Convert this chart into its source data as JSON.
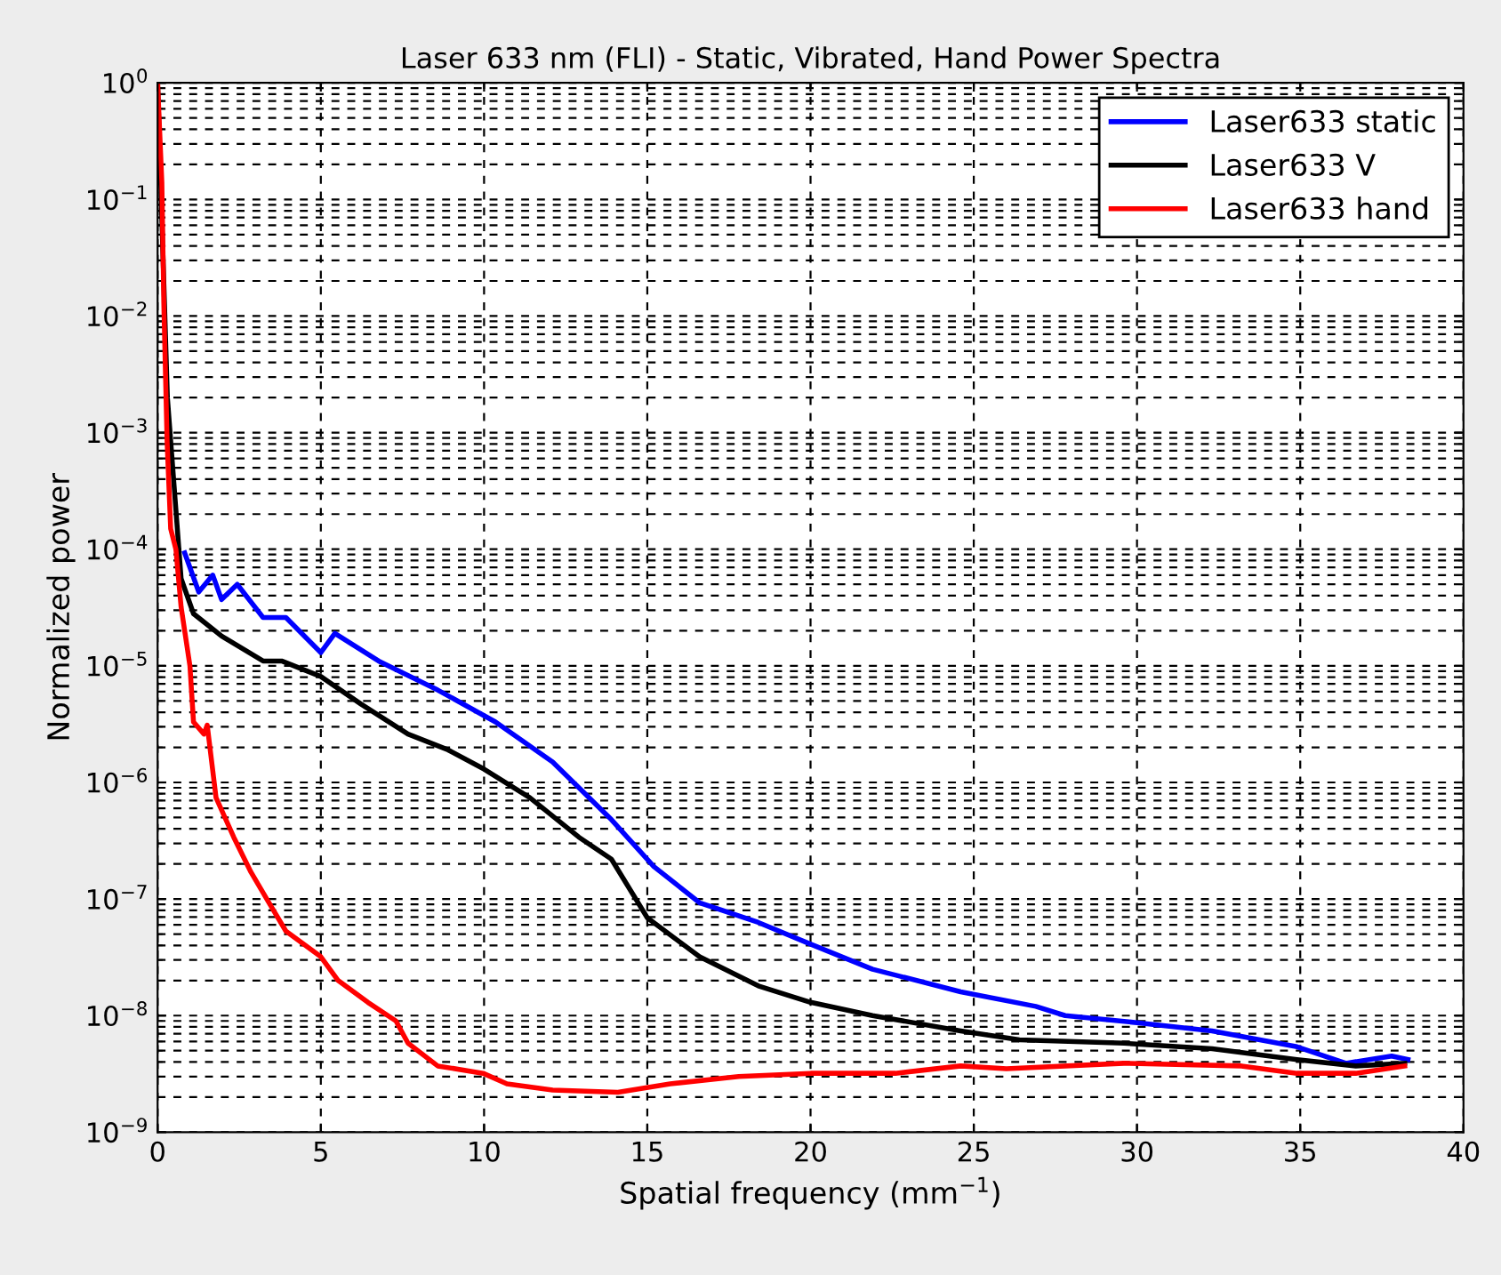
{
  "chart_data": {
    "type": "line",
    "title": "Laser 633 nm (FLI) - Static, Vibrated, Hand Power Spectra",
    "xlabel": "Spatial frequency (mm$^{−1}$)",
    "ylabel": "Normalized power",
    "log": "y",
    "grid": true,
    "legend": "top right",
    "line_style": "solid",
    "marker": "none",
    "xlim": [
      0,
      40
    ],
    "xticks": [
      0,
      5,
      10,
      15,
      20,
      25,
      30,
      35,
      40
    ],
    "ylim": [
      1e-09,
      1
    ],
    "yticks": [
      {
        "value": 1e-09,
        "label": "10$^{−9}$"
      },
      {
        "value": 1e-08,
        "label": "10$^{−8}$"
      },
      {
        "value": 1e-07,
        "label": "10$^{−7}$"
      },
      {
        "value": 1e-06,
        "label": "10$^{−6}$"
      },
      {
        "value": 1e-05,
        "label": "10$^{−5}$"
      },
      {
        "value": 0.0001,
        "label": "10$^{−4}$"
      },
      {
        "value": 0.001,
        "label": "10$^{−3}$"
      },
      {
        "value": 0.01,
        "label": "10$^{−2}$"
      },
      {
        "value": 0.1,
        "label": "10$^{−1}$"
      },
      {
        "value": 1,
        "label": "10$^{0}$"
      }
    ],
    "series": [
      {
        "name": "Laser633 static",
        "color": "#0000ff",
        "x": [
          0.83,
          1.26,
          1.69,
          1.96,
          2.44,
          3.23,
          3.93,
          5.0,
          5.43,
          6.77,
          8.58,
          10.35,
          12.1,
          13.9,
          15.2,
          16.6,
          18.4,
          20.0,
          21.9,
          24.6,
          26.9,
          27.8,
          30.0,
          32.3,
          34.9,
          36.4,
          37.8,
          38.3
        ],
        "values": [
          9.3e-05,
          4.3e-05,
          6e-05,
          3.7e-05,
          5e-05,
          2.6e-05,
          2.6e-05,
          1.3e-05,
          1.9e-05,
          1.1e-05,
          6.2e-06,
          3.3e-06,
          1.5e-06,
          4.8e-07,
          1.9e-07,
          9.3e-08,
          6.3e-08,
          4.1e-08,
          2.5e-08,
          1.6e-08,
          1.2e-08,
          1e-08,
          8.7e-09,
          7.4e-09,
          5.4e-09,
          3.9e-09,
          4.5e-09,
          4.2e-09
        ]
      },
      {
        "name": "Laser633 V",
        "color": "#000000",
        "x": [
          0,
          0.3,
          0.72,
          1.1,
          1.96,
          3.23,
          3.8,
          5.0,
          6.23,
          7.67,
          8.9,
          10.0,
          11.4,
          12.9,
          13.9,
          15.0,
          16.6,
          18.4,
          20.0,
          21.9,
          24.6,
          26.4,
          29.6,
          32.3,
          34.9,
          36.7,
          38.2
        ],
        "values": [
          1,
          0.002,
          5.6e-05,
          2.8e-05,
          1.8e-05,
          1.1e-05,
          1.1e-05,
          8.1e-06,
          4.7e-06,
          2.6e-06,
          1.9e-06,
          1.3e-06,
          7.4e-07,
          3.4e-07,
          2.2e-07,
          6.9e-08,
          3.2e-08,
          1.8e-08,
          1.3e-08,
          1e-08,
          7.4e-09,
          6.2e-09,
          5.8e-09,
          5.2e-09,
          4.2e-09,
          3.7e-09,
          3.9e-09
        ]
      },
      {
        "name": "Laser633 hand",
        "color": "#ff0000",
        "x": [
          0,
          0.13,
          0.19,
          0.29,
          0.4,
          0.56,
          0.72,
          0.99,
          1.1,
          1.42,
          1.52,
          1.79,
          2.33,
          2.86,
          3.4,
          3.93,
          5.0,
          5.53,
          6.44,
          7.3,
          7.67,
          8.58,
          9.97,
          10.7,
          12.1,
          14.1,
          15.7,
          17.8,
          20.0,
          22.6,
          24.6,
          26.0,
          29.6,
          33.2,
          34.9,
          36.7,
          38.2
        ],
        "values": [
          1,
          0.14,
          0.013,
          0.00085,
          0.00015,
          0.0001,
          3.2e-05,
          1e-05,
          3.3e-06,
          2.6e-06,
          3.1e-06,
          7.4e-07,
          3.4e-07,
          1.7e-07,
          9.4e-08,
          5.3e-08,
          3.2e-08,
          2e-08,
          1.3e-08,
          9e-09,
          5.8e-09,
          3.7e-09,
          3.2e-09,
          2.6e-09,
          2.3e-09,
          2.2e-09,
          2.6e-09,
          3e-09,
          3.2e-09,
          3.2e-09,
          3.7e-09,
          3.5e-09,
          3.9e-09,
          3.7e-09,
          3.2e-09,
          3.2e-09,
          3.7e-09
        ]
      }
    ]
  }
}
